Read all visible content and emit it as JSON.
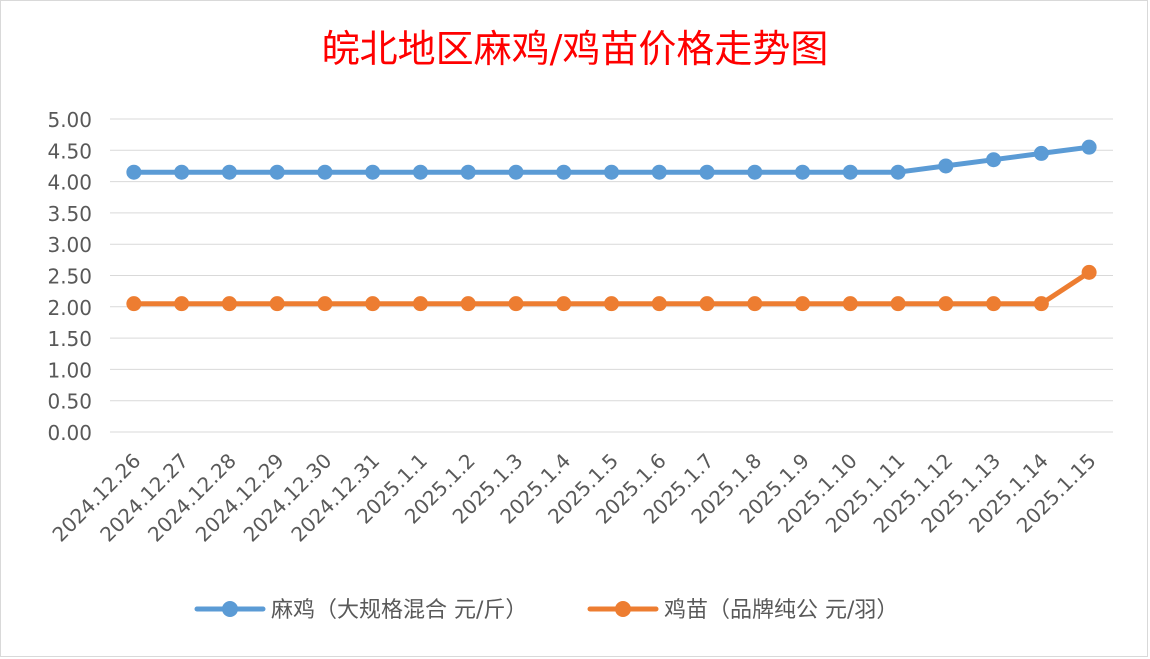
{
  "chart_data": {
    "type": "line",
    "title": "皖北地区麻鸡/鸡苗价格走势图",
    "title_color": "#ff0000",
    "categories": [
      "2024.12.26",
      "2024.12.27",
      "2024.12.28",
      "2024.12.29",
      "2024.12.30",
      "2024.12.31",
      "2025.1.1",
      "2025.1.2",
      "2025.1.3",
      "2025.1.4",
      "2025.1.5",
      "2025.1.6",
      "2025.1.7",
      "2025.1.8",
      "2025.1.9",
      "2025.1.10",
      "2025.1.11",
      "2025.1.12",
      "2025.1.13",
      "2025.1.14",
      "2025.1.15"
    ],
    "series": [
      {
        "name": "麻鸡（大规格混合 元/斤）",
        "color": "#5b9bd5",
        "values": [
          4.15,
          4.15,
          4.15,
          4.15,
          4.15,
          4.15,
          4.15,
          4.15,
          4.15,
          4.15,
          4.15,
          4.15,
          4.15,
          4.15,
          4.15,
          4.15,
          4.15,
          4.25,
          4.35,
          4.45,
          4.55
        ]
      },
      {
        "name": "鸡苗（品牌纯公 元/羽）",
        "color": "#ed7d31",
        "values": [
          2.05,
          2.05,
          2.05,
          2.05,
          2.05,
          2.05,
          2.05,
          2.05,
          2.05,
          2.05,
          2.05,
          2.05,
          2.05,
          2.05,
          2.05,
          2.05,
          2.05,
          2.05,
          2.05,
          2.05,
          2.55
        ]
      }
    ],
    "y_ticks": [
      "0.00",
      "0.50",
      "1.00",
      "1.50",
      "2.00",
      "2.50",
      "3.00",
      "3.50",
      "4.00",
      "4.50",
      "5.00"
    ],
    "ylim": [
      0,
      5
    ],
    "xlabel": "",
    "ylabel": "",
    "grid": true,
    "legend_position": "bottom"
  }
}
